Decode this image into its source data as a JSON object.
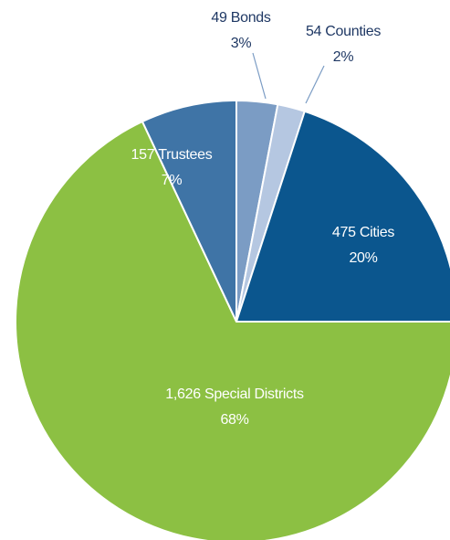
{
  "chart_data": {
    "type": "pie",
    "categories": [
      "49 Bonds",
      "54 Counties",
      "475 Cities",
      "1,626 Special Districts",
      "157 Trustees"
    ],
    "values": [
      3,
      2,
      20,
      68,
      7
    ],
    "value_labels": [
      "3%",
      "2%",
      "20%",
      "68%",
      "7%"
    ],
    "colors": [
      "#7b9cc4",
      "#b5c7e1",
      "#0b568e",
      "#8cc043",
      "#3f74a6"
    ]
  }
}
